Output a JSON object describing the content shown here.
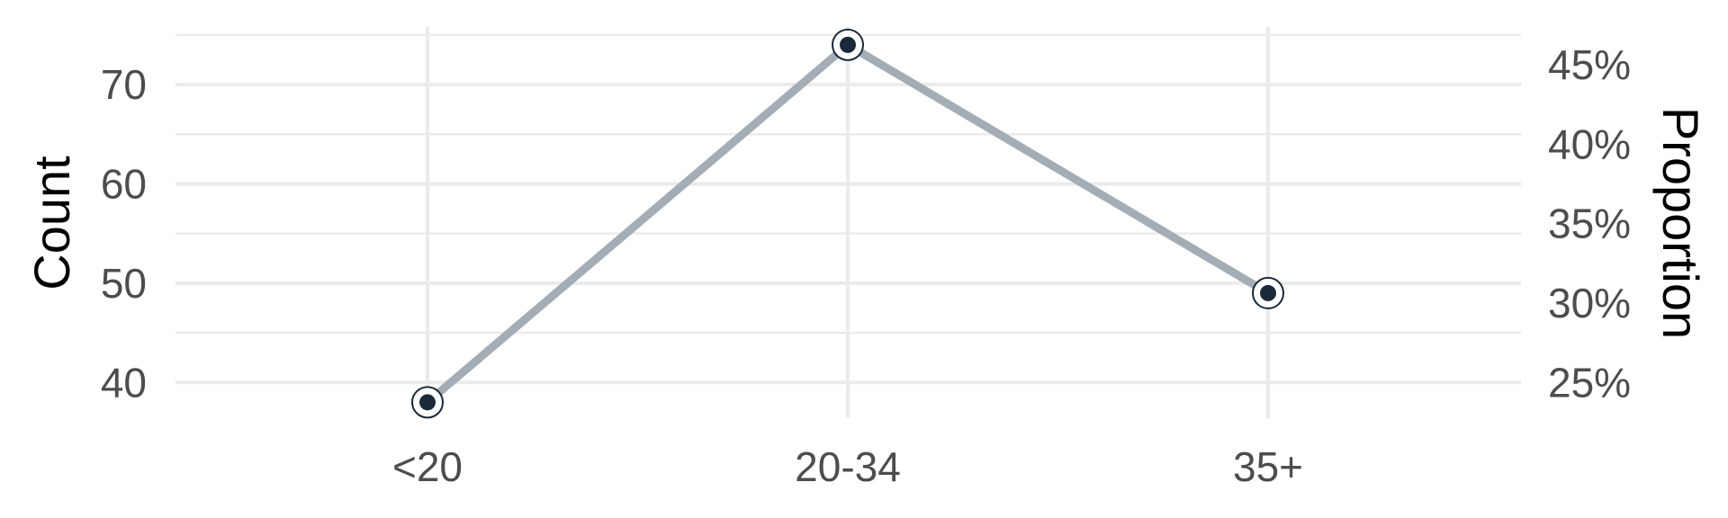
{
  "chart_data": {
    "type": "line",
    "categories": [
      "<20",
      "20-34",
      "35+"
    ],
    "series": [
      {
        "values": [
          38,
          74,
          49
        ]
      }
    ],
    "ylabel": "Count",
    "ylabel_right": "Proportion",
    "ylim": [
      36.4,
      75.8
    ],
    "y_ticks": [
      40,
      50,
      60,
      70
    ],
    "y_tick_labels": [
      "40",
      "50",
      "60",
      "70"
    ],
    "y2_ticks": [
      40,
      48,
      56,
      64,
      72
    ],
    "y2_tick_labels": [
      "25%",
      "30%",
      "35%",
      "40%",
      "45%"
    ],
    "grid": true,
    "legend": "none",
    "colors": {
      "line": "#a3adb5",
      "point": "#1a2a3a",
      "point_ring": "#1a2a3a",
      "grid": "#ebebeb",
      "tick_text": "#4d4d4d",
      "title_text": "#000000"
    }
  }
}
